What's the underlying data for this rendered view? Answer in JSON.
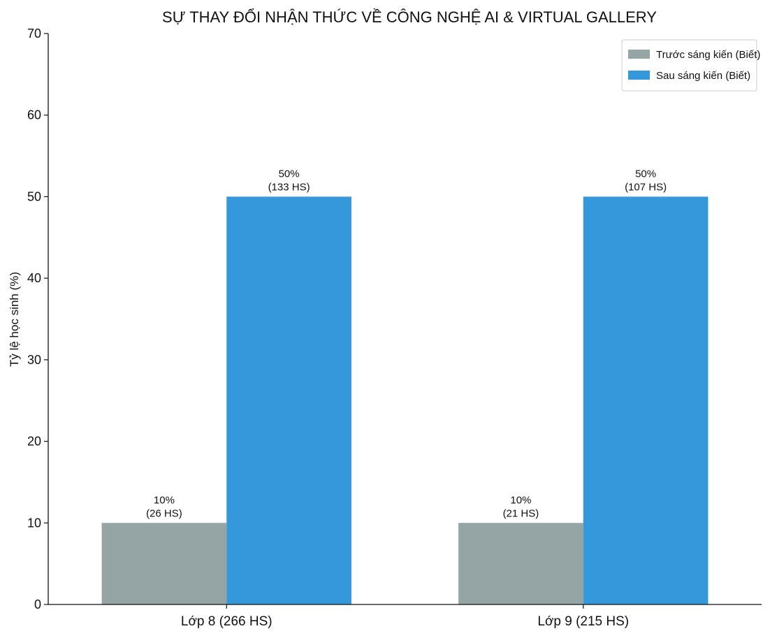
{
  "chart_data": {
    "type": "bar",
    "title": "SỰ THAY ĐỔI NHẬN THỨC VỀ CÔNG NGHỆ AI & VIRTUAL GALLERY",
    "xlabel": "",
    "ylabel": "Tỷ lệ học sinh (%)",
    "categories": [
      "Lớp 8 (266 HS)",
      "Lớp 9 (215 HS)"
    ],
    "ylim": [
      0,
      70
    ],
    "yticks": [
      0,
      10,
      20,
      30,
      40,
      50,
      60,
      70
    ],
    "grid": false,
    "legend_position": "top-right",
    "series": [
      {
        "name": "Trước sáng kiến (Biết)",
        "color": "#95a5a6",
        "values": [
          10,
          10
        ],
        "labels": [
          [
            "10%",
            "(26 HS)"
          ],
          [
            "10%",
            "(21 HS)"
          ]
        ]
      },
      {
        "name": "Sau sáng kiến (Biết)",
        "color": "#3498db",
        "values": [
          50,
          50
        ],
        "labels": [
          [
            "50%",
            "(133 HS)"
          ],
          [
            "50%",
            "(107 HS)"
          ]
        ]
      }
    ]
  }
}
